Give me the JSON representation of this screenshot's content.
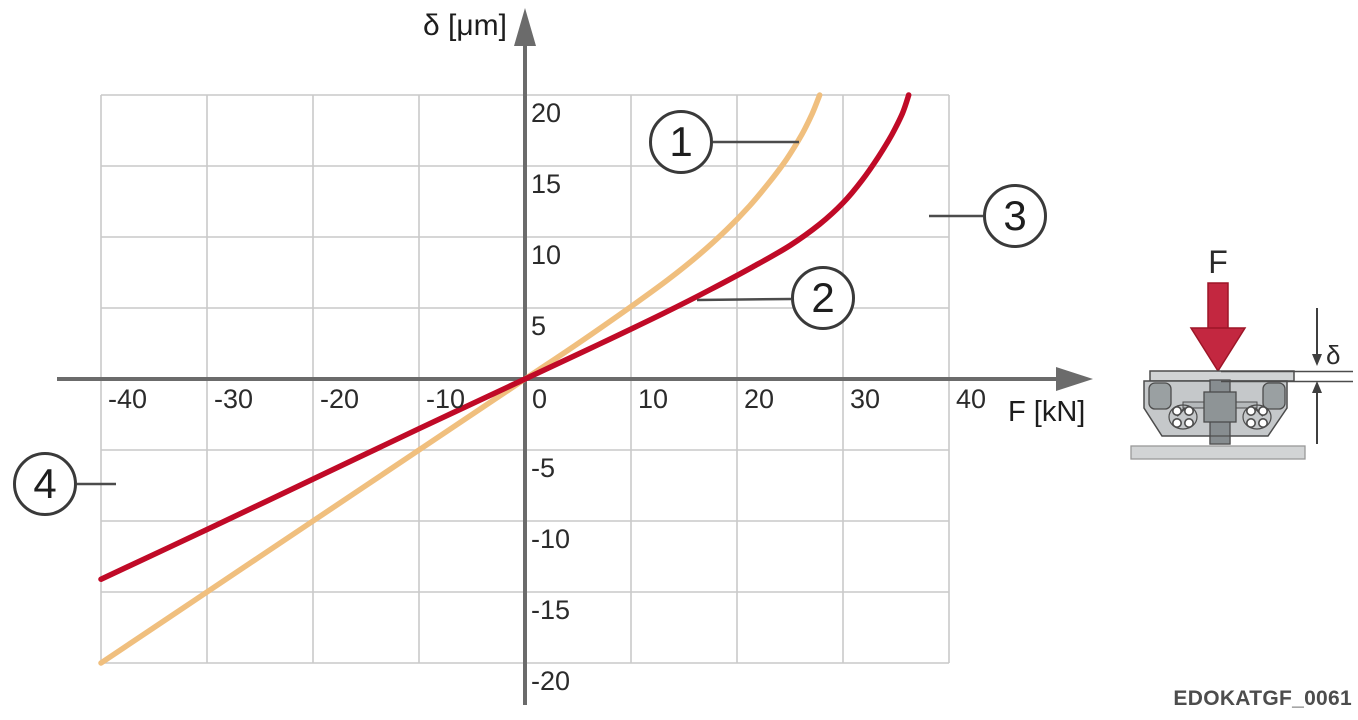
{
  "chart_data": {
    "type": "line",
    "title": "",
    "xlabel": "F [kN]",
    "ylabel": "δ [μm]",
    "xlim": [
      -40,
      40
    ],
    "ylim": [
      -20,
      20
    ],
    "grid": "on",
    "legend": "none",
    "x_ticks": [
      -40,
      -30,
      -20,
      -10,
      0,
      10,
      20,
      30,
      40
    ],
    "y_ticks": [
      20,
      15,
      10,
      5,
      -5,
      -10,
      -15,
      -20
    ],
    "series": [
      {
        "name": "1",
        "color": "#f0bf7e",
        "points": [
          [
            -40,
            -20
          ],
          [
            -30,
            -15
          ],
          [
            -20,
            -10
          ],
          [
            -10,
            -5
          ],
          [
            0,
            0
          ],
          [
            5,
            2.5
          ],
          [
            10,
            5.1
          ],
          [
            13.5,
            7
          ],
          [
            16.5,
            8.8
          ],
          [
            19,
            10.5
          ],
          [
            21.2,
            12.2
          ],
          [
            23.1,
            13.9
          ],
          [
            24.7,
            15.5
          ],
          [
            26.1,
            17.2
          ],
          [
            27.1,
            18.7
          ],
          [
            27.8,
            20
          ]
        ]
      },
      {
        "name": "2",
        "color": "#c00a27",
        "points": [
          [
            -40,
            -14.1
          ],
          [
            -30,
            -10.6
          ],
          [
            -20,
            -7.05
          ],
          [
            -10,
            -3.5
          ],
          [
            0,
            0
          ],
          [
            7,
            2.45
          ],
          [
            13,
            4.6
          ],
          [
            17.5,
            6.3
          ],
          [
            21.5,
            7.9
          ],
          [
            25,
            9.4
          ],
          [
            27.8,
            10.9
          ],
          [
            30,
            12.4
          ],
          [
            31.8,
            14
          ],
          [
            33.3,
            15.6
          ],
          [
            34.6,
            17.2
          ],
          [
            35.6,
            18.7
          ],
          [
            36.2,
            20
          ]
        ]
      }
    ],
    "annotations": [
      "1",
      "2",
      "3",
      "4"
    ]
  },
  "callouts": [
    {
      "label": "1"
    },
    {
      "label": "2"
    },
    {
      "label": "3"
    },
    {
      "label": "4"
    }
  ],
  "illustration": {
    "force_label": "F",
    "deflection_label": "δ"
  },
  "watermark": "EDOKATGF_0061",
  "colors": {
    "curve1": "#f0bf7e",
    "curve2": "#c00a27",
    "axis": "#6b6b6b",
    "grid": "#c9c9c9",
    "force_arrow": "#c32740"
  }
}
